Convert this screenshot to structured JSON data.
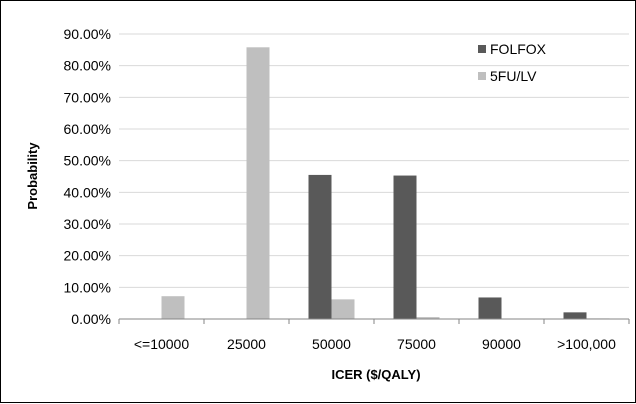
{
  "chart_data": {
    "type": "bar",
    "title": "",
    "xlabel": "ICER ($/QALY)",
    "ylabel": "Probability",
    "categories": [
      "<=10000",
      "25000",
      "50000",
      "75000",
      "90000",
      ">100,000"
    ],
    "series": [
      {
        "name": "FOLFOX",
        "color": "#595959",
        "values": [
          0.0,
          0.0,
          45.5,
          45.3,
          6.8,
          2.1
        ]
      },
      {
        "name": "5FU/LV",
        "color": "#bfbfbf",
        "values": [
          7.2,
          85.8,
          6.2,
          0.6,
          0.0,
          0.2
        ]
      }
    ],
    "ylim": [
      0,
      90
    ],
    "yticks": [
      "0.00%",
      "10.00%",
      "20.00%",
      "30.00%",
      "40.00%",
      "50.00%",
      "60.00%",
      "70.00%",
      "80.00%",
      "90.00%"
    ],
    "grid": true,
    "legend_position": "top-right"
  }
}
